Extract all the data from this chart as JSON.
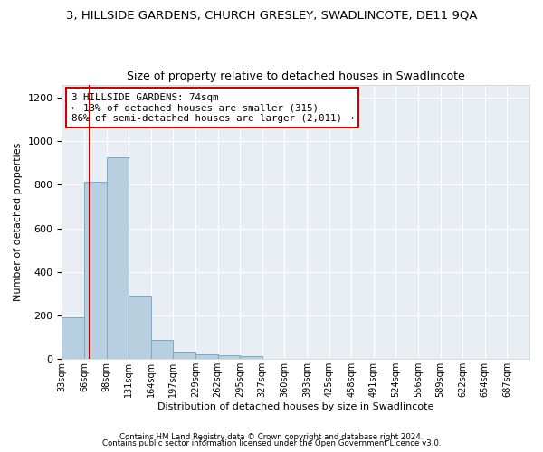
{
  "title": "3, HILLSIDE GARDENS, CHURCH GRESLEY, SWADLINCOTE, DE11 9QA",
  "subtitle": "Size of property relative to detached houses in Swadlincote",
  "xlabel": "Distribution of detached houses by size in Swadlincote",
  "ylabel": "Number of detached properties",
  "bar_color": "#b8cfe0",
  "bar_edge_color": "#7aaac8",
  "annotation_line_color": "#cc0000",
  "annotation_box_color": "#cc0000",
  "annotation_text": "3 HILLSIDE GARDENS: 74sqm\n← 13% of detached houses are smaller (315)\n86% of semi-detached houses are larger (2,011) →",
  "annotation_bar_index": 1,
  "categories": [
    "33sqm",
    "66sqm",
    "98sqm",
    "131sqm",
    "164sqm",
    "197sqm",
    "229sqm",
    "262sqm",
    "295sqm",
    "327sqm",
    "360sqm",
    "393sqm",
    "425sqm",
    "458sqm",
    "491sqm",
    "524sqm",
    "556sqm",
    "589sqm",
    "622sqm",
    "654sqm",
    "687sqm"
  ],
  "values": [
    190,
    815,
    925,
    290,
    88,
    35,
    22,
    18,
    12,
    0,
    0,
    0,
    0,
    0,
    0,
    0,
    0,
    0,
    0,
    0,
    0
  ],
  "ylim": [
    0,
    1260
  ],
  "yticks": [
    0,
    200,
    400,
    600,
    800,
    1000,
    1200
  ],
  "footer_line1": "Contains HM Land Registry data © Crown copyright and database right 2024.",
  "footer_line2": "Contains public sector information licensed under the Open Government Licence v3.0.",
  "background_color": "#ffffff",
  "plot_background": "#e8eef4",
  "grid_color": "#ffffff",
  "title_fontsize": 9.5,
  "subtitle_fontsize": 9
}
